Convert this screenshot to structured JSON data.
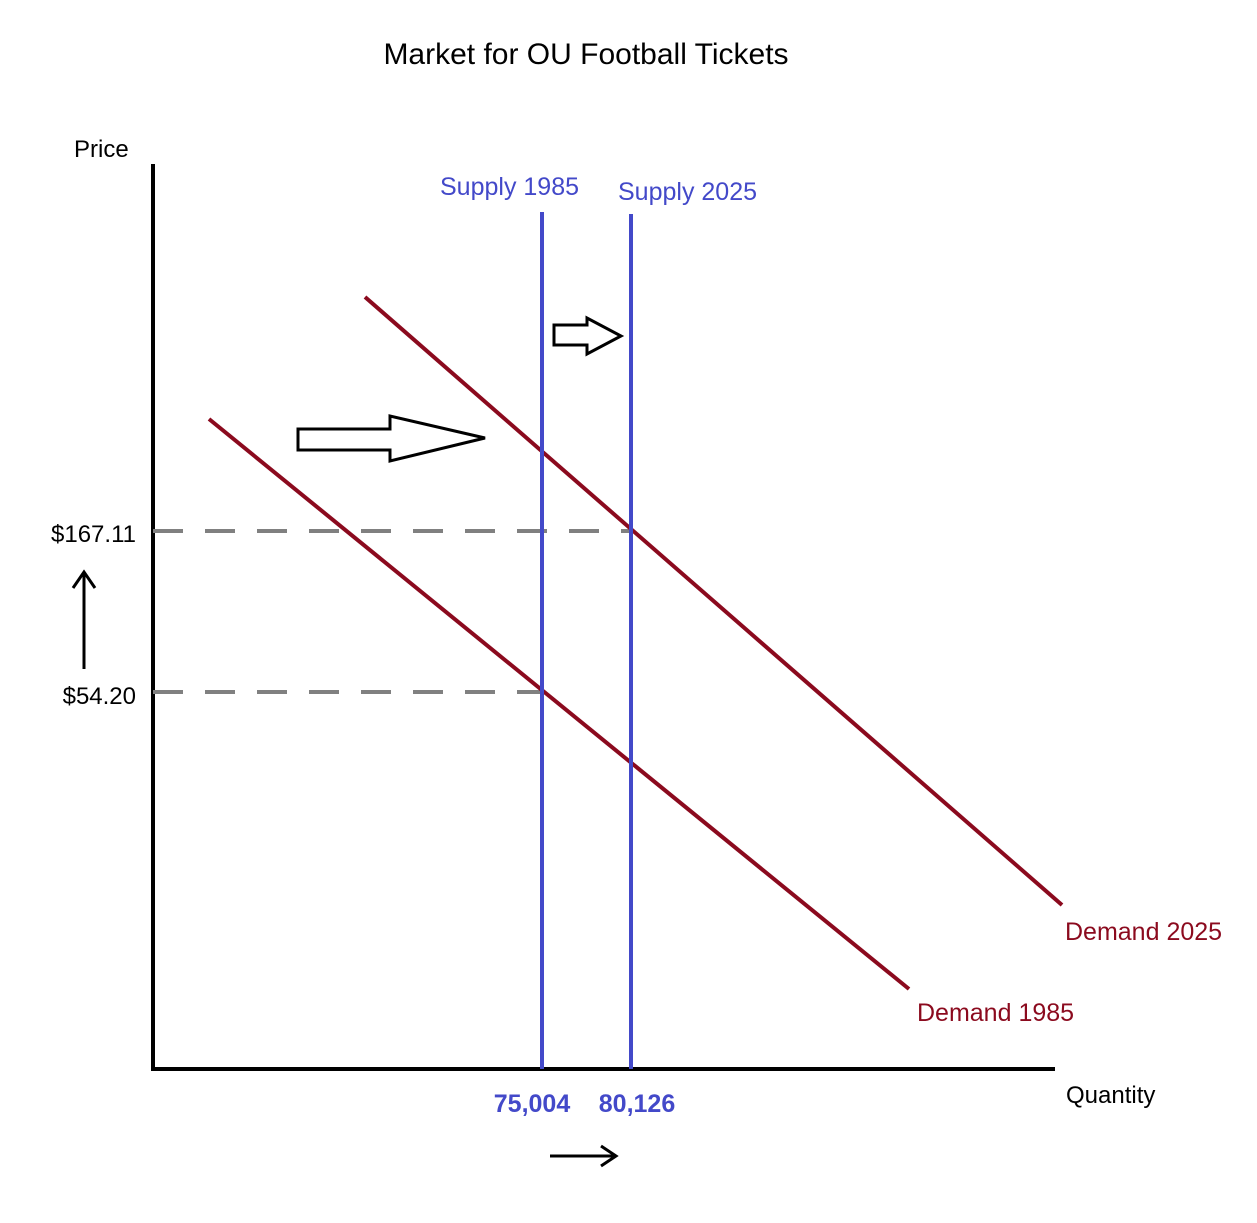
{
  "title": "Market for OU Football Tickets",
  "axes": {
    "y_label": "Price",
    "x_label": "Quantity"
  },
  "colors": {
    "supply": "#4349c9",
    "demand": "#8b0a1e",
    "axis": "#000000",
    "guide": "#808080",
    "arrow": "#000000"
  },
  "supply_curves": [
    {
      "label": "Supply 1985",
      "quantity": "75,004"
    },
    {
      "label": "Supply 2025",
      "quantity": "80,126"
    }
  ],
  "demand_curves": [
    {
      "label": "Demand 1985"
    },
    {
      "label": "Demand 2025"
    }
  ],
  "prices": [
    {
      "label": "$167.11"
    },
    {
      "label": "$54.20"
    }
  ],
  "shift_indicators": [
    {
      "name": "demand-shift-arrow",
      "direction": "right"
    },
    {
      "name": "supply-shift-arrow",
      "direction": "right"
    },
    {
      "name": "price-increase-arrow",
      "direction": "up"
    },
    {
      "name": "quantity-increase-arrow",
      "direction": "right"
    }
  ]
}
